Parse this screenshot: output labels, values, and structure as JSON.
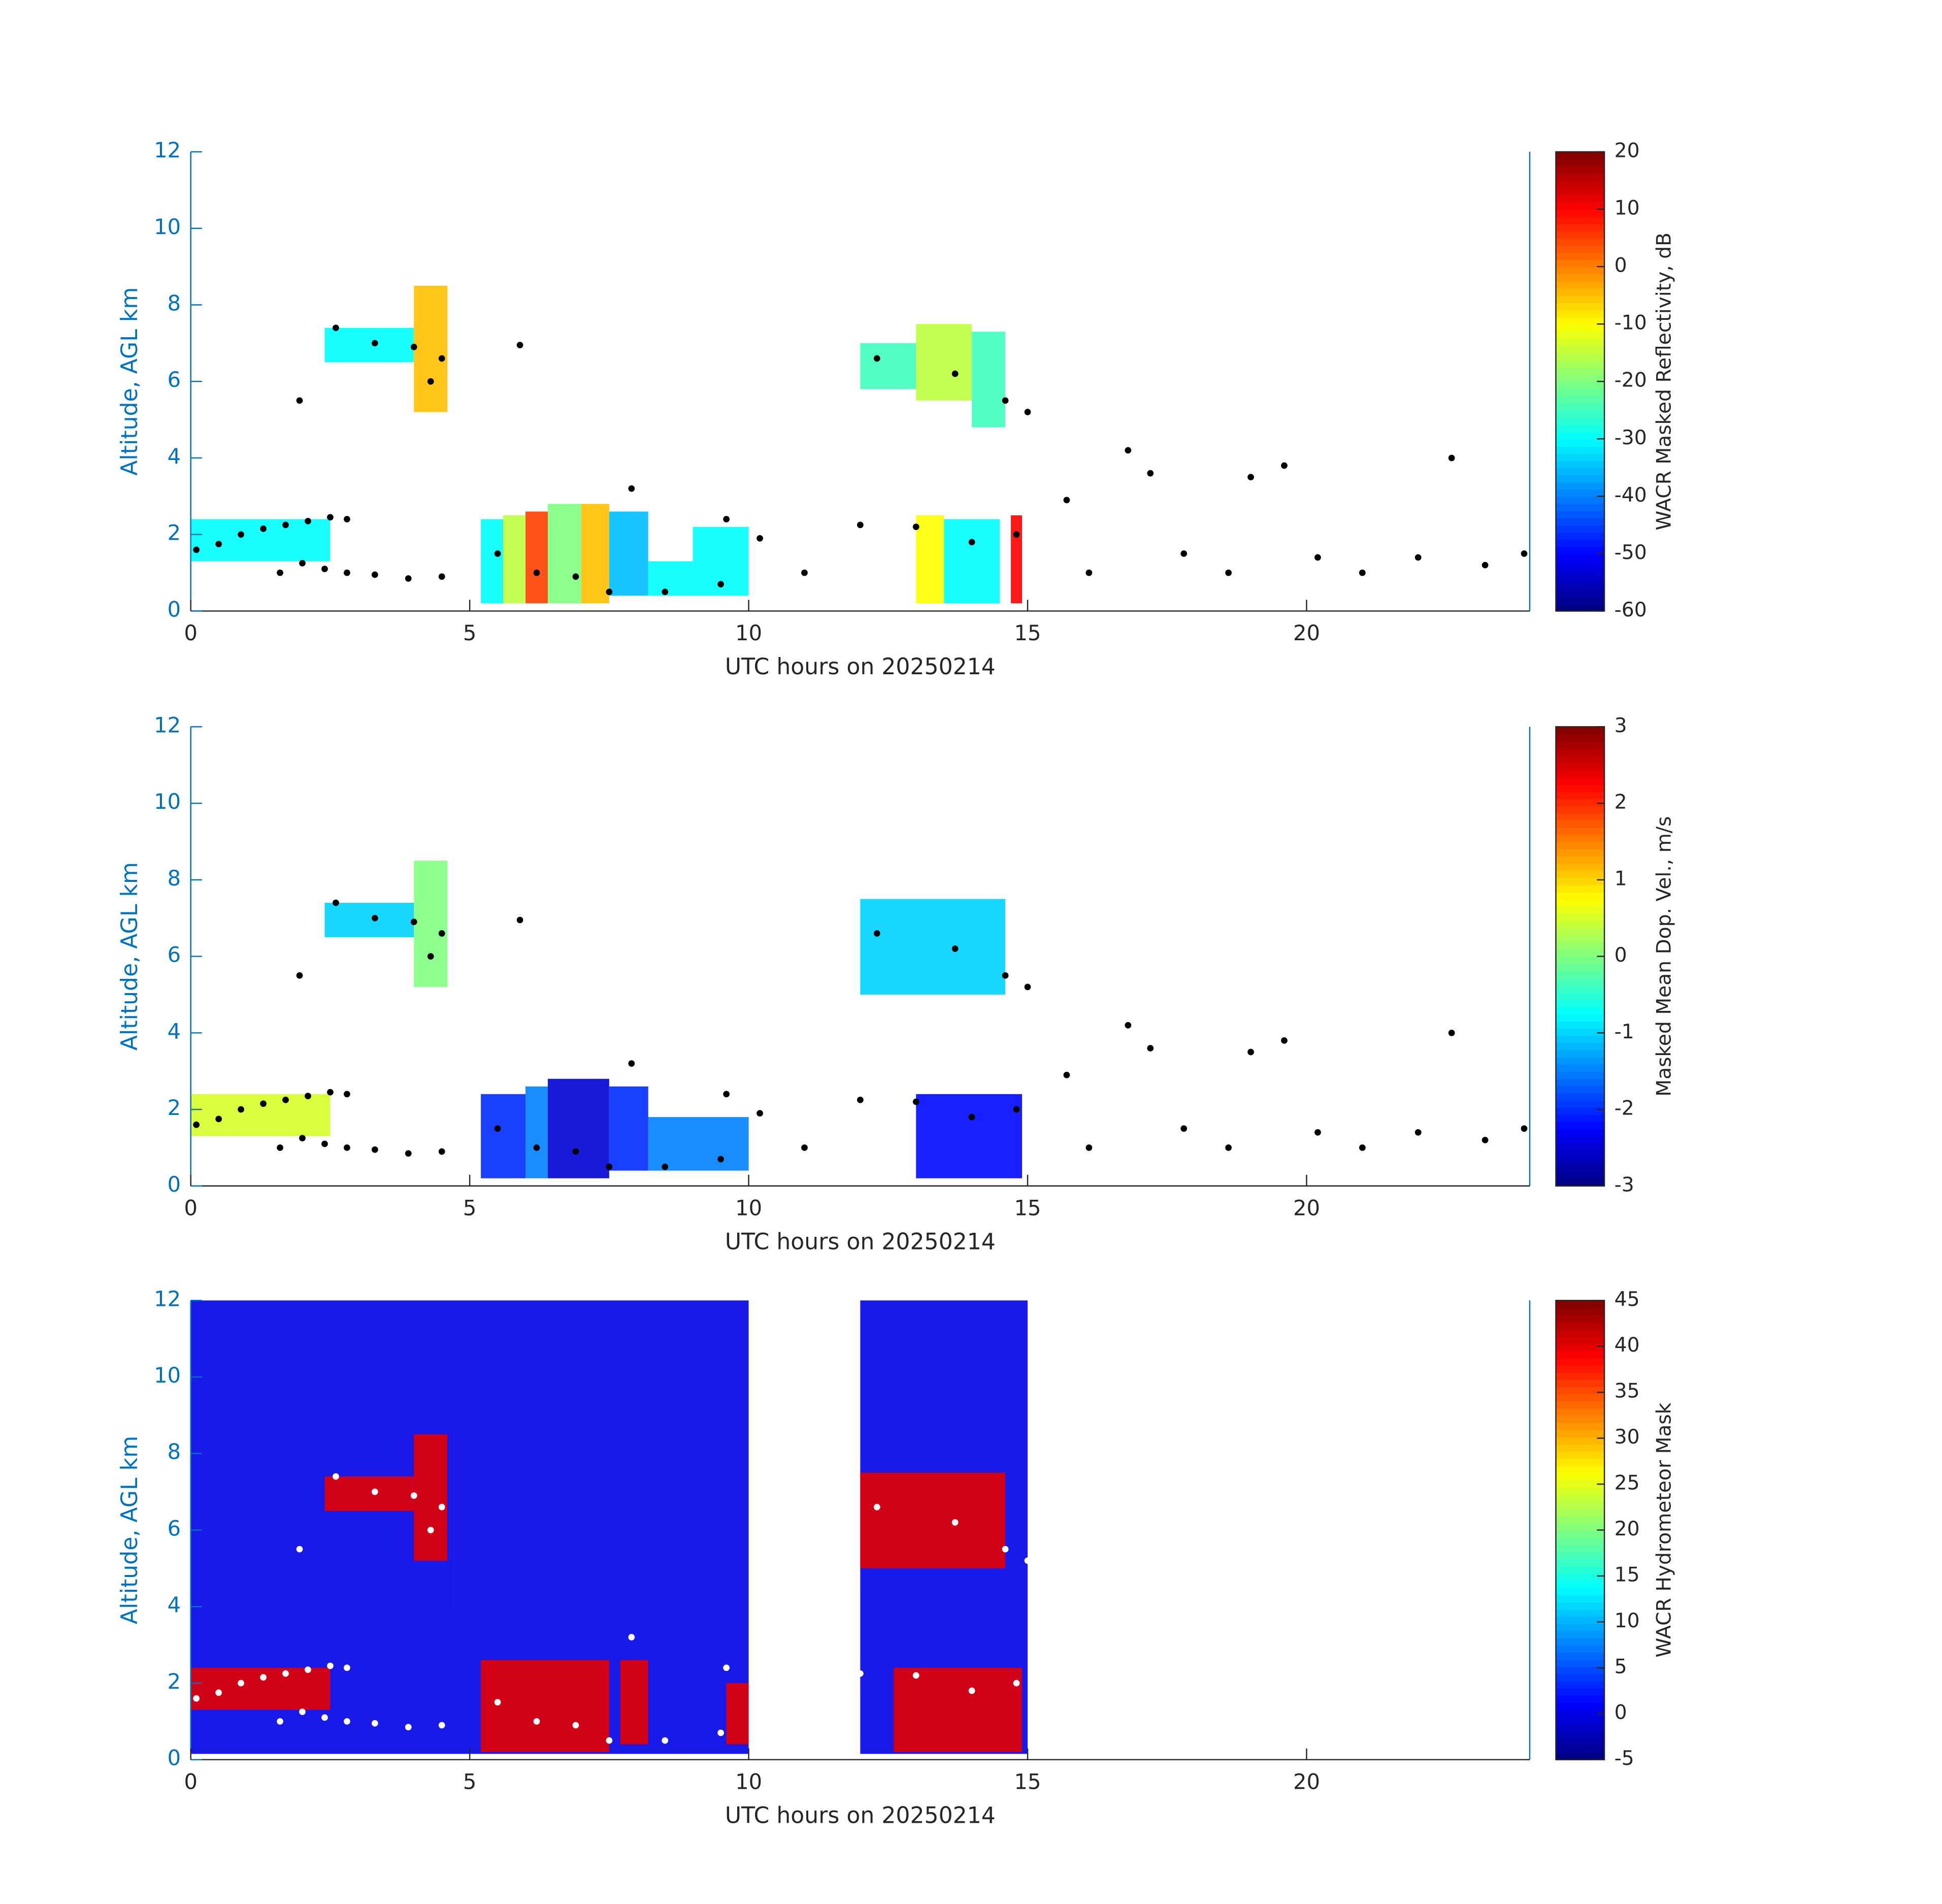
{
  "chart_data": [
    {
      "type": "radar",
      "xlabel": "UTC hours on 20250214",
      "ylabel": "Altitude, AGL km",
      "xlim": [
        0,
        24
      ],
      "xticks": [
        0,
        5,
        10,
        15,
        20
      ],
      "ylim": [
        0,
        12
      ],
      "yticks": [
        0,
        2,
        4,
        6,
        8,
        10,
        12
      ],
      "colorbar": {
        "label": "WACR Masked Reflectivity, dB",
        "lim": [
          -60,
          20
        ],
        "ticks": [
          -60,
          -50,
          -40,
          -30,
          -20,
          -10,
          0,
          10,
          20
        ]
      },
      "cells": [
        {
          "x": [
            0,
            2.5
          ],
          "y": [
            1.3,
            2.4
          ],
          "value": -30
        },
        {
          "x": [
            2.4,
            4.0
          ],
          "y": [
            6.5,
            7.4
          ],
          "value": -30
        },
        {
          "x": [
            4.0,
            4.6
          ],
          "y": [
            5.2,
            8.5
          ],
          "value": -5
        },
        {
          "x": [
            5.2,
            5.6
          ],
          "y": [
            0.2,
            2.4
          ],
          "value": -30
        },
        {
          "x": [
            5.6,
            6.0
          ],
          "y": [
            0.2,
            2.5
          ],
          "value": -15
        },
        {
          "x": [
            6.0,
            6.4
          ],
          "y": [
            0.2,
            2.6
          ],
          "value": 5
        },
        {
          "x": [
            6.4,
            7.0
          ],
          "y": [
            0.2,
            2.8
          ],
          "value": -20
        },
        {
          "x": [
            7.0,
            7.5
          ],
          "y": [
            0.2,
            2.8
          ],
          "value": -5
        },
        {
          "x": [
            7.5,
            8.2
          ],
          "y": [
            0.4,
            2.6
          ],
          "value": -35
        },
        {
          "x": [
            8.2,
            9.0
          ],
          "y": [
            0.4,
            1.3
          ],
          "value": -30
        },
        {
          "x": [
            9.0,
            10.0
          ],
          "y": [
            0.4,
            2.2
          ],
          "value": -30
        },
        {
          "x": [
            12.0,
            13.0
          ],
          "y": [
            5.8,
            7.0
          ],
          "value": -25
        },
        {
          "x": [
            13.0,
            14.0
          ],
          "y": [
            5.5,
            7.5
          ],
          "value": -15
        },
        {
          "x": [
            14.0,
            14.6
          ],
          "y": [
            4.8,
            7.3
          ],
          "value": -25
        },
        {
          "x": [
            13.0,
            13.5
          ],
          "y": [
            0.2,
            2.5
          ],
          "value": -10
        },
        {
          "x": [
            13.5,
            14.5
          ],
          "y": [
            0.2,
            2.4
          ],
          "value": -30
        },
        {
          "x": [
            14.7,
            14.9
          ],
          "y": [
            0.2,
            2.5
          ],
          "value": 10
        }
      ],
      "points": {
        "color": "#000000",
        "x": [
          0.1,
          0.5,
          0.9,
          1.3,
          1.7,
          2.1,
          2.5,
          2.8,
          1.6,
          2.0,
          2.4,
          2.8,
          3.3,
          3.9,
          4.5,
          1.95,
          2.6,
          3.3,
          4.0,
          4.3,
          4.5,
          5.9,
          5.5,
          6.2,
          6.9,
          7.5,
          7.9,
          8.5,
          9.5,
          9.6,
          10.2,
          11.0,
          12.0,
          13.0,
          14.0,
          14.8,
          12.3,
          13.7,
          14.6,
          15.0,
          15.7,
          16.1,
          16.8,
          17.2,
          17.8,
          18.6,
          19.0,
          19.6,
          20.2,
          21.0,
          22.0,
          22.6,
          23.2,
          23.9
        ],
        "y": [
          1.6,
          1.75,
          2.0,
          2.15,
          2.25,
          2.35,
          2.45,
          2.4,
          1.0,
          1.25,
          1.1,
          1.0,
          0.95,
          0.85,
          0.9,
          5.5,
          7.4,
          7.0,
          6.9,
          6.0,
          6.6,
          6.95,
          1.5,
          1.0,
          0.9,
          0.5,
          3.2,
          0.5,
          0.7,
          2.4,
          1.9,
          1.0,
          2.25,
          2.2,
          1.8,
          2.0,
          6.6,
          6.2,
          5.5,
          5.2,
          2.9,
          1.0,
          4.2,
          3.6,
          1.5,
          1.0,
          3.5,
          3.8,
          1.4,
          1.0,
          1.4,
          4.0,
          1.2,
          1.5
        ]
      }
    },
    {
      "type": "radar",
      "xlabel": "UTC hours on 20250214",
      "ylabel": "Altitude, AGL km",
      "xlim": [
        0,
        24
      ],
      "xticks": [
        0,
        5,
        10,
        15,
        20
      ],
      "ylim": [
        0,
        12
      ],
      "yticks": [
        0,
        2,
        4,
        6,
        8,
        10,
        12
      ],
      "colorbar": {
        "label": "Masked Mean Dop. Vel., m/s",
        "lim": [
          -3,
          3
        ],
        "ticks": [
          -3,
          -2,
          -1,
          0,
          1,
          2,
          3
        ]
      },
      "cells": [
        {
          "x": [
            0,
            2.5
          ],
          "y": [
            1.3,
            2.4
          ],
          "value": 0.5
        },
        {
          "x": [
            2.4,
            4.0
          ],
          "y": [
            6.5,
            7.4
          ],
          "value": -1
        },
        {
          "x": [
            4.0,
            4.6
          ],
          "y": [
            5.2,
            8.5
          ],
          "value": 0
        },
        {
          "x": [
            5.2,
            6.0
          ],
          "y": [
            0.2,
            2.4
          ],
          "value": -2
        },
        {
          "x": [
            6.0,
            6.4
          ],
          "y": [
            0.2,
            2.6
          ],
          "value": -1.5
        },
        {
          "x": [
            6.4,
            7.5
          ],
          "y": [
            0.2,
            2.8
          ],
          "value": -2.5
        },
        {
          "x": [
            7.5,
            8.2
          ],
          "y": [
            0.4,
            2.6
          ],
          "value": -2
        },
        {
          "x": [
            8.2,
            10.0
          ],
          "y": [
            0.4,
            1.8
          ],
          "value": -1.5
        },
        {
          "x": [
            12.0,
            14.6
          ],
          "y": [
            5.0,
            7.5
          ],
          "value": -1
        },
        {
          "x": [
            13.0,
            14.9
          ],
          "y": [
            0.2,
            2.4
          ],
          "value": -2.2
        }
      ],
      "points": {
        "color": "#000000",
        "x": [
          0.1,
          0.5,
          0.9,
          1.3,
          1.7,
          2.1,
          2.5,
          2.8,
          1.6,
          2.0,
          2.4,
          2.8,
          3.3,
          3.9,
          4.5,
          1.95,
          2.6,
          3.3,
          4.0,
          4.3,
          4.5,
          5.9,
          5.5,
          6.2,
          6.9,
          7.5,
          7.9,
          8.5,
          9.5,
          9.6,
          10.2,
          11.0,
          12.0,
          13.0,
          14.0,
          14.8,
          12.3,
          13.7,
          14.6,
          15.0,
          15.7,
          16.1,
          16.8,
          17.2,
          17.8,
          18.6,
          19.0,
          19.6,
          20.2,
          21.0,
          22.0,
          22.6,
          23.2,
          23.9
        ],
        "y": [
          1.6,
          1.75,
          2.0,
          2.15,
          2.25,
          2.35,
          2.45,
          2.4,
          1.0,
          1.25,
          1.1,
          1.0,
          0.95,
          0.85,
          0.9,
          5.5,
          7.4,
          7.0,
          6.9,
          6.0,
          6.6,
          6.95,
          1.5,
          1.0,
          0.9,
          0.5,
          3.2,
          0.5,
          0.7,
          2.4,
          1.9,
          1.0,
          2.25,
          2.2,
          1.8,
          2.0,
          6.6,
          6.2,
          5.5,
          5.2,
          2.9,
          1.0,
          4.2,
          3.6,
          1.5,
          1.0,
          3.5,
          3.8,
          1.4,
          1.0,
          1.4,
          4.0,
          1.2,
          1.5
        ]
      }
    },
    {
      "type": "radar",
      "xlabel": "UTC hours on 20250214",
      "ylabel": "Altitude, AGL km",
      "xlim": [
        0,
        24
      ],
      "xticks": [
        0,
        5,
        10,
        15,
        20
      ],
      "ylim": [
        0,
        12
      ],
      "yticks": [
        0,
        2,
        4,
        6,
        8,
        10,
        12
      ],
      "colorbar": {
        "label": "WACR Hydrometeor Mask",
        "lim": [
          -5,
          45
        ],
        "ticks": [
          -5,
          0,
          5,
          10,
          15,
          20,
          25,
          30,
          35,
          40,
          45
        ]
      },
      "cells": [
        {
          "x": [
            0,
            10.0
          ],
          "y": [
            0.15,
            12
          ],
          "value": 0
        },
        {
          "x": [
            12.0,
            15.0
          ],
          "y": [
            0.15,
            12
          ],
          "value": 0
        },
        {
          "x": [
            0,
            2.5
          ],
          "y": [
            1.3,
            2.4
          ],
          "value": 40
        },
        {
          "x": [
            2.4,
            4.0
          ],
          "y": [
            6.5,
            7.4
          ],
          "value": 40
        },
        {
          "x": [
            4.0,
            4.6
          ],
          "y": [
            5.2,
            8.5
          ],
          "value": 40
        },
        {
          "x": [
            5.2,
            7.5
          ],
          "y": [
            0.2,
            2.6
          ],
          "value": 40
        },
        {
          "x": [
            7.7,
            8.2
          ],
          "y": [
            0.4,
            2.6
          ],
          "value": 40
        },
        {
          "x": [
            9.6,
            10.0
          ],
          "y": [
            0.4,
            2.0
          ],
          "value": 40
        },
        {
          "x": [
            12.0,
            14.6
          ],
          "y": [
            5.0,
            7.5
          ],
          "value": 40
        },
        {
          "x": [
            12.6,
            14.9
          ],
          "y": [
            0.2,
            2.4
          ],
          "value": 40
        }
      ],
      "points": {
        "color": "#ffffff",
        "x": [
          0.1,
          0.5,
          0.9,
          1.3,
          1.7,
          2.1,
          2.5,
          2.8,
          1.6,
          2.0,
          2.4,
          2.8,
          3.3,
          3.9,
          4.5,
          1.95,
          2.6,
          3.3,
          4.0,
          4.3,
          4.5,
          5.5,
          6.2,
          6.9,
          7.5,
          7.9,
          8.5,
          9.5,
          9.6,
          12.0,
          13.0,
          14.0,
          14.8,
          12.3,
          13.7,
          14.6,
          15.0
        ],
        "y": [
          1.6,
          1.75,
          2.0,
          2.15,
          2.25,
          2.35,
          2.45,
          2.4,
          1.0,
          1.25,
          1.1,
          1.0,
          0.95,
          0.85,
          0.9,
          5.5,
          7.4,
          7.0,
          6.9,
          6.0,
          6.6,
          1.5,
          1.0,
          0.9,
          0.5,
          3.2,
          0.5,
          0.7,
          2.4,
          2.25,
          2.2,
          1.8,
          2.0,
          6.6,
          6.2,
          5.5,
          5.2
        ]
      }
    }
  ]
}
